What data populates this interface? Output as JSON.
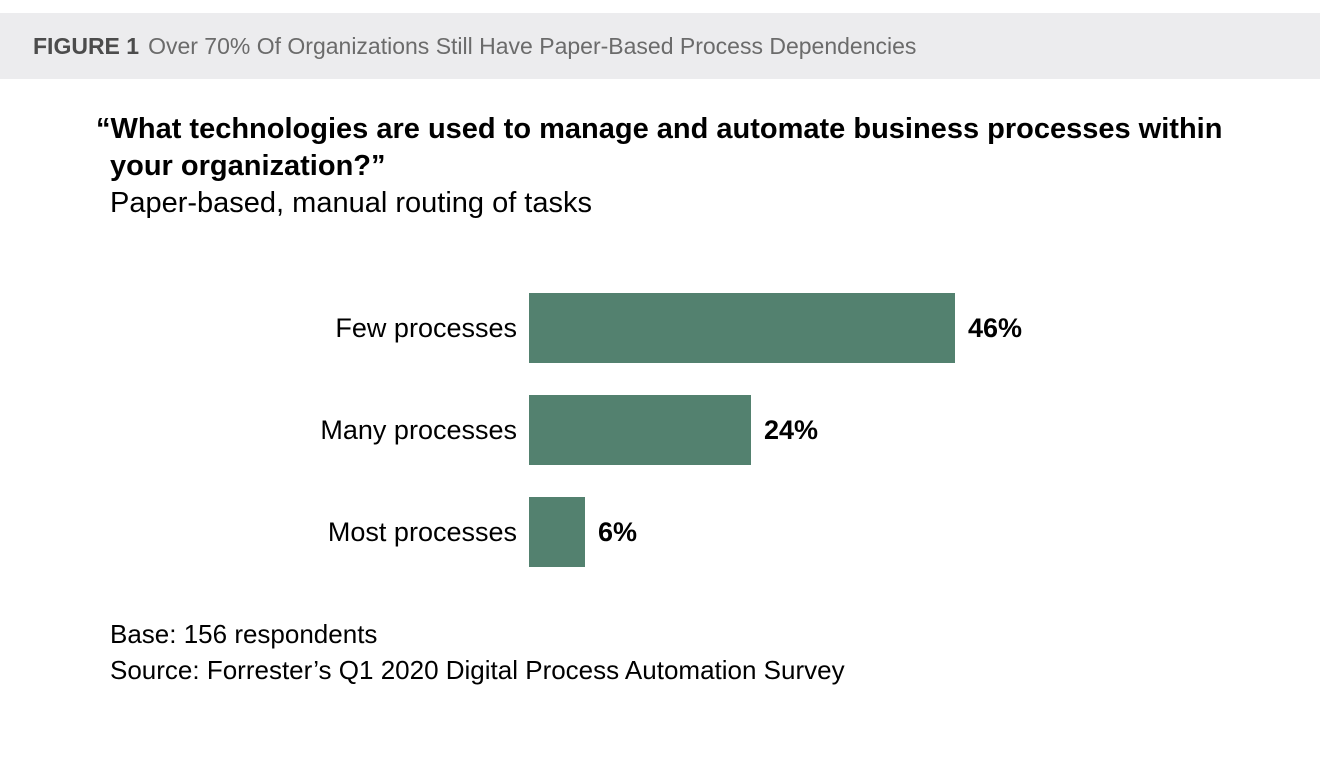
{
  "figure_header": {
    "label": "FIGURE 1",
    "title": "Over 70% Of Organizations Still Have Paper-Based Process Dependencies"
  },
  "question": {
    "line1": "“What technologies are used to manage and automate business processes within",
    "line2": "your organization?”",
    "subtitle": "Paper-based, manual routing of tasks"
  },
  "chart_data": {
    "type": "bar",
    "orientation": "horizontal",
    "categories": [
      "Few processes",
      "Many processes",
      "Most processes"
    ],
    "values": [
      46,
      24,
      6
    ],
    "value_labels": [
      "46%",
      "24%",
      "6%"
    ],
    "title": "Paper-based, manual routing of tasks",
    "xlabel": "",
    "ylabel": "",
    "xlim": [
      0,
      100
    ],
    "grid": false,
    "legend_position": "none",
    "bar_color": "#53816F"
  },
  "footer": {
    "base": "Base: 156 respondents",
    "source": "Source: Forrester’s Q1 2020 Digital Process Automation Survey"
  },
  "colors": {
    "header_bg": "#ECECEE",
    "header_label_text": "#4C4C4C",
    "header_title_text": "#6B6B6B",
    "bar": "#53816F",
    "body_text": "#000000"
  }
}
